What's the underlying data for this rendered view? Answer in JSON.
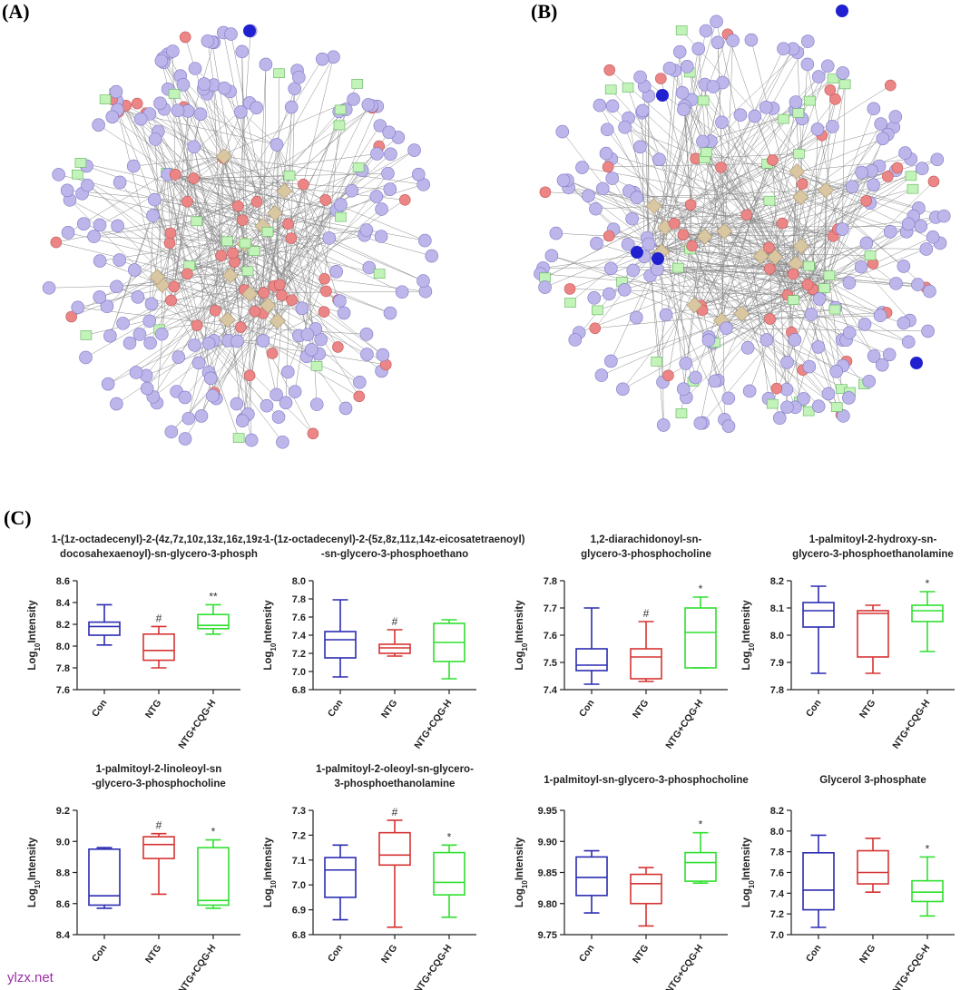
{
  "panels": {
    "a": "(A)",
    "b": "(B)",
    "c": "(C)"
  },
  "watermark": "ylzx.net",
  "chart_data": [
    {
      "type": "box",
      "title": [
        "1-(1z-octadecenyl)-2-(4z,7z,10z,13z,16z,19z-",
        "docosahexaenoyl)-sn-glycero-3-phosph"
      ],
      "ylabel": {
        "base": "Log",
        "sub": "10",
        "rest": "Intensity"
      },
      "categories": [
        "Con",
        "NTG",
        "NTG+CQG-H"
      ],
      "colors": [
        "#2b2bb3",
        "#d63333",
        "#2fe02f"
      ],
      "boxes": [
        {
          "min": 8.01,
          "q1": 8.1,
          "median": 8.18,
          "q3": 8.22,
          "max": 8.38
        },
        {
          "min": 7.8,
          "q1": 7.87,
          "median": 7.96,
          "q3": 8.11,
          "max": 8.18
        },
        {
          "min": 8.11,
          "q1": 8.16,
          "median": 8.19,
          "q3": 8.29,
          "max": 8.38
        }
      ],
      "annotations": [
        null,
        "#",
        "**"
      ],
      "ylim": [
        7.6,
        8.6
      ],
      "yticks": [
        7.6,
        7.8,
        {
          "value": 8,
          "label": "8.0"
        },
        8.2,
        8.4,
        8.6
      ]
    },
    {
      "type": "box",
      "title": [
        "1-(1z-octadecenyl)-2-(5z,8z,11z,14z-eicosatetraenoyl)",
        "-sn-glycero-3-phosphoethano"
      ],
      "ylabel": {
        "base": "Log",
        "sub": "10",
        "rest": "Intensity"
      },
      "categories": [
        "Con",
        "NTG",
        "NTG+CQG-H"
      ],
      "colors": [
        "#2b2bb3",
        "#d63333",
        "#2fe02f"
      ],
      "boxes": [
        {
          "min": 6.94,
          "q1": 7.15,
          "median": 7.35,
          "q3": 7.44,
          "max": 7.79
        },
        {
          "min": 7.17,
          "q1": 7.2,
          "median": 7.26,
          "q3": 7.3,
          "max": 7.46
        },
        {
          "min": 6.92,
          "q1": 7.11,
          "median": 7.32,
          "q3": 7.53,
          "max": 7.57
        }
      ],
      "annotations": [
        null,
        "#",
        null
      ],
      "ylim": [
        6.8,
        8
      ],
      "yticks": [
        6.8,
        {
          "value": 7,
          "label": "7.0"
        },
        7.2,
        7.4,
        7.6,
        7.8,
        {
          "value": 8,
          "label": "8.0"
        }
      ]
    },
    {
      "type": "box",
      "title": [
        "1,2-diarachidonoyl-sn-",
        "glycero-3-phosphocholine"
      ],
      "ylabel": {
        "base": "Log",
        "sub": "10",
        "rest": "Intensity"
      },
      "categories": [
        "Con",
        "NTG",
        "NTG+CQG-H"
      ],
      "colors": [
        "#2b2bb3",
        "#d63333",
        "#2fe02f"
      ],
      "boxes": [
        {
          "min": 7.42,
          "q1": 7.47,
          "median": 7.49,
          "q3": 7.55,
          "max": 7.7
        },
        {
          "min": 7.43,
          "q1": 7.44,
          "median": 7.52,
          "q3": 7.55,
          "max": 7.65
        },
        {
          "min": 7.48,
          "q1": 7.48,
          "median": 7.61,
          "q3": 7.7,
          "max": 7.74
        }
      ],
      "annotations": [
        null,
        "#",
        "*"
      ],
      "ylim": [
        7.4,
        7.8
      ],
      "yticks": [
        7.4,
        7.5,
        7.6,
        7.7,
        7.8
      ]
    },
    {
      "type": "box",
      "title": [
        "1-palmitoyl-2-hydroxy-sn-",
        "glycero-3-phosphoethanolamine"
      ],
      "ylabel": {
        "base": "Log",
        "sub": "10",
        "rest": "Intensity"
      },
      "categories": [
        "Con",
        "NTG",
        "NTG+CQG-H"
      ],
      "colors": [
        "#2b2bb3",
        "#d63333",
        "#2fe02f"
      ],
      "boxes": [
        {
          "min": 7.86,
          "q1": 8.03,
          "median": 8.09,
          "q3": 8.12,
          "max": 8.18
        },
        {
          "min": 7.86,
          "q1": 7.92,
          "median": 8.08,
          "q3": 8.09,
          "max": 8.11
        },
        {
          "min": 7.94,
          "q1": 8.05,
          "median": 8.09,
          "q3": 8.11,
          "max": 8.16
        }
      ],
      "annotations": [
        null,
        null,
        "*"
      ],
      "ylim": [
        7.8,
        8.2
      ],
      "yticks": [
        7.8,
        7.9,
        {
          "value": 8,
          "label": "8.0"
        },
        8.1,
        8.2
      ]
    },
    {
      "type": "box",
      "title": [
        "1-palmitoyl-2-linoleoyl-sn",
        "-glycero-3-phosphocholine"
      ],
      "ylabel": {
        "base": "Log",
        "sub": "10",
        "rest": "Intensity"
      },
      "categories": [
        "Con",
        "NTG",
        "NTG+CQG-H"
      ],
      "colors": [
        "#2b2bb3",
        "#d63333",
        "#2fe02f"
      ],
      "boxes": [
        {
          "min": 8.57,
          "q1": 8.59,
          "median": 8.65,
          "q3": 8.95,
          "max": 8.96
        },
        {
          "min": 8.66,
          "q1": 8.89,
          "median": 8.98,
          "q3": 9.03,
          "max": 9.05
        },
        {
          "min": 8.57,
          "q1": 8.59,
          "median": 8.62,
          "q3": 8.96,
          "max": 9.01
        }
      ],
      "annotations": [
        null,
        "#",
        "*"
      ],
      "ylim": [
        8.4,
        9.2
      ],
      "yticks": [
        8.4,
        8.6,
        8.8,
        {
          "value": 9,
          "label": "9.0"
        },
        9.2
      ]
    },
    {
      "type": "box",
      "title": [
        "1-palmitoyl-2-oleoyl-sn-glycero-",
        "3-phosphoethanolamine"
      ],
      "ylabel": {
        "base": "Log",
        "sub": "10",
        "rest": "Intensity"
      },
      "categories": [
        "Con",
        "NTG",
        "NTG+CQG-H"
      ],
      "colors": [
        "#2b2bb3",
        "#d63333",
        "#2fe02f"
      ],
      "boxes": [
        {
          "min": 6.86,
          "q1": 6.95,
          "median": 7.06,
          "q3": 7.11,
          "max": 7.16
        },
        {
          "min": 6.83,
          "q1": 7.08,
          "median": 7.12,
          "q3": 7.21,
          "max": 7.26
        },
        {
          "min": 6.87,
          "q1": 6.96,
          "median": 7.01,
          "q3": 7.13,
          "max": 7.16
        }
      ],
      "annotations": [
        null,
        "#",
        "*"
      ],
      "ylim": [
        6.8,
        7.3
      ],
      "yticks": [
        6.8,
        6.9,
        {
          "value": 7,
          "label": "7.0"
        },
        7.1,
        7.2,
        7.3
      ]
    },
    {
      "type": "box",
      "title": [
        "1-palmitoyl-sn-glycero-3-phosphocholine"
      ],
      "ylabel": {
        "base": "Log",
        "sub": "10",
        "rest": "Intensity"
      },
      "categories": [
        "Con",
        "NTG",
        "NTG+CQG-H"
      ],
      "colors": [
        "#2b2bb3",
        "#d63333",
        "#2fe02f"
      ],
      "boxes": [
        {
          "min": 9.785,
          "q1": 9.813,
          "median": 9.842,
          "q3": 9.875,
          "max": 9.885
        },
        {
          "min": 9.764,
          "q1": 9.8,
          "median": 9.832,
          "q3": 9.847,
          "max": 9.858
        },
        {
          "min": 9.833,
          "q1": 9.836,
          "median": 9.866,
          "q3": 9.882,
          "max": 9.914
        }
      ],
      "annotations": [
        null,
        null,
        "*"
      ],
      "ylim": [
        9.75,
        9.95
      ],
      "yticks": [
        9.75,
        {
          "value": 9.8,
          "label": "9.80"
        },
        9.85,
        {
          "value": 9.9,
          "label": "9.90"
        },
        9.95
      ]
    },
    {
      "type": "box",
      "title": [
        "Glycerol 3-phosphate"
      ],
      "ylabel": {
        "base": "Log",
        "sub": "10",
        "rest": "Intensity"
      },
      "categories": [
        "Con",
        "NTG",
        "NTG+CQG-H"
      ],
      "colors": [
        "#2b2bb3",
        "#d63333",
        "#2fe02f"
      ],
      "boxes": [
        {
          "min": 7.07,
          "q1": 7.24,
          "median": 7.43,
          "q3": 7.79,
          "max": 7.96
        },
        {
          "min": 7.41,
          "q1": 7.49,
          "median": 7.6,
          "q3": 7.81,
          "max": 7.93
        },
        {
          "min": 7.18,
          "q1": 7.32,
          "median": 7.41,
          "q3": 7.52,
          "max": 7.75
        }
      ],
      "annotations": [
        null,
        null,
        "*"
      ],
      "ylim": [
        7,
        8.2
      ],
      "yticks": [
        {
          "value": 7,
          "label": "7.0"
        },
        7.2,
        7.4,
        7.6,
        7.8,
        {
          "value": 8,
          "label": "8.0"
        },
        8.2
      ]
    }
  ]
}
